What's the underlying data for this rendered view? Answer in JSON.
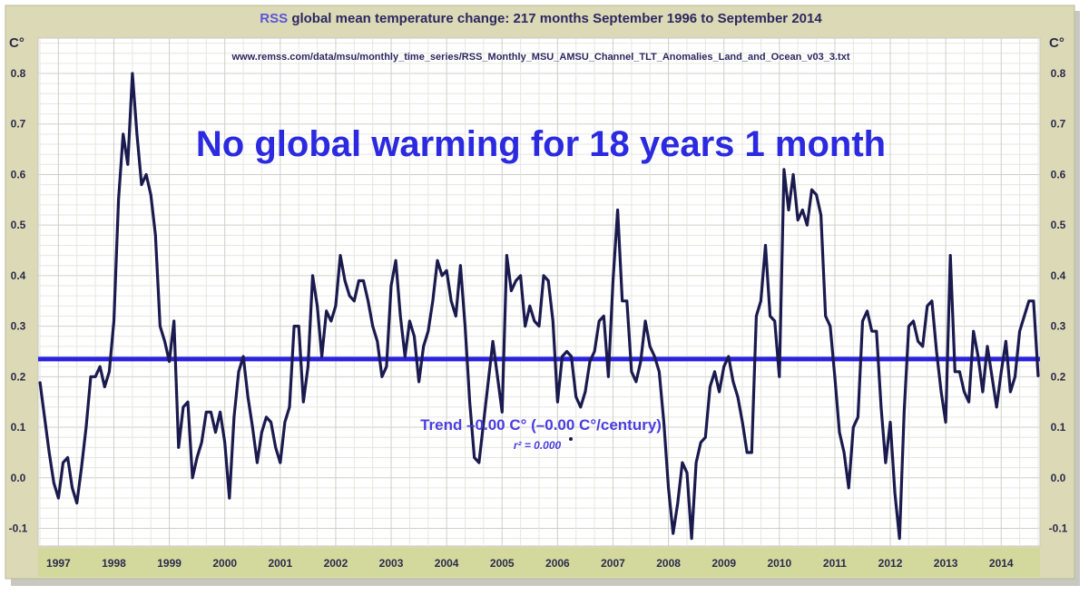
{
  "chart_data": {
    "type": "line",
    "title_brand": "RSS",
    "title": "global mean temperature change: 217 months September 1996 to September 2014",
    "source": "www.remss.com/data/msu/monthly_time_series/RSS_Monthly_MSU_AMSU_Channel_TLT_Anomalies_Land_and_Ocean_v03_3.txt",
    "headline": "No global warming for 18 years 1 month",
    "trend_label": "Trend –0.00 C° (–0.00 C°/century)",
    "r2_label": "r² = 0.000",
    "ylabel_left": "C°",
    "ylabel_right": "C°",
    "x_start": "1996-09",
    "x_end": "2014-09",
    "x_tick_labels": [
      "1997",
      "1998",
      "1999",
      "2000",
      "2001",
      "2002",
      "2003",
      "2004",
      "2005",
      "2006",
      "2007",
      "2008",
      "2009",
      "2010",
      "2011",
      "2012",
      "2013",
      "2014"
    ],
    "y_tick_labels": [
      "0.8",
      "0.7",
      "0.6",
      "0.5",
      "0.4",
      "0.3",
      "0.2",
      "0.1",
      "0.0",
      "-0.1"
    ],
    "y_ticks": [
      0.8,
      0.7,
      0.6,
      0.5,
      0.4,
      0.3,
      0.2,
      0.1,
      0.0,
      -0.1
    ],
    "ylim": [
      -0.135,
      0.87
    ],
    "grid": true,
    "series": [
      {
        "color": "#1a1a4e",
        "values": [
          0.19,
          0.12,
          0.05,
          -0.01,
          -0.04,
          0.03,
          0.04,
          -0.02,
          -0.05,
          0.02,
          0.1,
          0.2,
          0.2,
          0.22,
          0.18,
          0.21,
          0.31,
          0.55,
          0.68,
          0.62,
          0.8,
          0.68,
          0.58,
          0.6,
          0.56,
          0.48,
          0.3,
          0.27,
          0.23,
          0.31,
          0.06,
          0.14,
          0.15,
          0.0,
          0.04,
          0.07,
          0.13,
          0.13,
          0.09,
          0.13,
          0.07,
          -0.04,
          0.12,
          0.21,
          0.24,
          0.16,
          0.1,
          0.03,
          0.09,
          0.12,
          0.11,
          0.06,
          0.03,
          0.11,
          0.14,
          0.3,
          0.3,
          0.15,
          0.22,
          0.4,
          0.34,
          0.24,
          0.33,
          0.31,
          0.34,
          0.44,
          0.39,
          0.36,
          0.35,
          0.39,
          0.39,
          0.35,
          0.3,
          0.27,
          0.2,
          0.22,
          0.38,
          0.43,
          0.32,
          0.24,
          0.31,
          0.28,
          0.19,
          0.26,
          0.29,
          0.35,
          0.43,
          0.4,
          0.41,
          0.35,
          0.32,
          0.42,
          0.3,
          0.15,
          0.04,
          0.03,
          0.11,
          0.19,
          0.27,
          0.2,
          0.13,
          0.44,
          0.37,
          0.39,
          0.4,
          0.3,
          0.34,
          0.31,
          0.3,
          0.4,
          0.39,
          0.31,
          0.15,
          0.24,
          0.25,
          0.24,
          0.16,
          0.14,
          0.17,
          0.23,
          0.25,
          0.31,
          0.32,
          0.2,
          0.39,
          0.53,
          0.35,
          0.35,
          0.21,
          0.19,
          0.23,
          0.31,
          0.26,
          0.24,
          0.21,
          0.11,
          -0.02,
          -0.11,
          -0.05,
          0.03,
          0.01,
          -0.12,
          0.03,
          0.07,
          0.08,
          0.18,
          0.21,
          0.17,
          0.22,
          0.24,
          0.19,
          0.16,
          0.11,
          0.05,
          0.05,
          0.32,
          0.35,
          0.46,
          0.32,
          0.31,
          0.2,
          0.61,
          0.53,
          0.6,
          0.51,
          0.53,
          0.5,
          0.57,
          0.56,
          0.52,
          0.32,
          0.3,
          0.2,
          0.09,
          0.05,
          -0.02,
          0.1,
          0.12,
          0.31,
          0.33,
          0.29,
          0.29,
          0.14,
          0.03,
          0.11,
          -0.03,
          -0.12,
          0.13,
          0.3,
          0.31,
          0.27,
          0.26,
          0.34,
          0.35,
          0.25,
          0.17,
          0.11,
          0.44,
          0.21,
          0.21,
          0.17,
          0.15,
          0.29,
          0.24,
          0.17,
          0.26,
          0.2,
          0.14,
          0.21,
          0.27,
          0.17,
          0.2,
          0.29,
          0.32,
          0.35,
          0.35,
          0.2
        ]
      },
      {
        "color": "#2a22e0",
        "kind": "trend",
        "values_endpoints": [
          0.235,
          0.235
        ]
      }
    ],
    "colors": {
      "frame": "#d9d8b0",
      "axis_strip": "#d3d99c",
      "plot_bg": "#ffffff",
      "grid": "#d6d6d0"
    }
  }
}
